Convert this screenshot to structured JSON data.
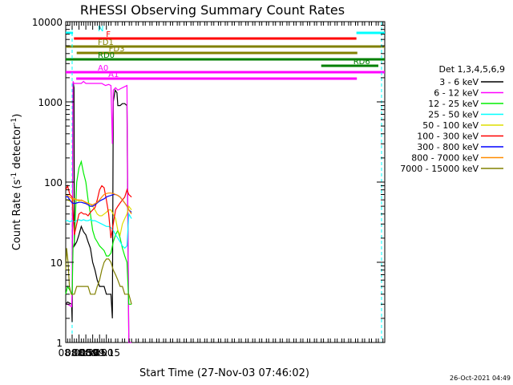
{
  "chart_data": {
    "type": "line",
    "title": "RHESSI Observing Summary Count Rates",
    "xlabel": "Start Time (27-Nov-03 07:46:02)",
    "ylabel_main": "Count Rate (s",
    "ylabel_sup1": "-1",
    "ylabel_mid": " detector",
    "ylabel_sup2": "-1",
    "ylabel_end": ")",
    "y_scale": "log",
    "ylim": [
      1,
      10000
    ],
    "xlim_minutes_of_day": [
      466,
      1164
    ],
    "x_tick_labels": [
      "08:00",
      "08:15",
      "08:30",
      "08:45",
      "09:00",
      "09:15"
    ],
    "y_tick_labels": [
      "1",
      "10",
      "100",
      "1000",
      "10000"
    ],
    "legend_header": "Det 1,3,4,5,6,9",
    "legend": [
      {
        "name": "3 - 6 keV",
        "color": "#000000"
      },
      {
        "name": "6 - 12 keV",
        "color": "#ff00ff"
      },
      {
        "name": "12 - 25 keV",
        "color": "#00ee00"
      },
      {
        "name": "25 - 50 keV",
        "color": "#00ffff"
      },
      {
        "name": "50 - 100 keV",
        "color": "#dddd00"
      },
      {
        "name": "100 - 300 keV",
        "color": "#ff0000"
      },
      {
        "name": "300 - 800 keV",
        "color": "#0000ff"
      },
      {
        "name": "800 - 7000 keV",
        "color": "#ff8c00"
      },
      {
        "name": "7000 - 15000 keV",
        "color": "#808000"
      }
    ],
    "flag_bars": [
      {
        "label": "N",
        "color": "#00ffff",
        "segments": [
          [
            466,
            482
          ],
          [
            1102,
            1164
          ]
        ]
      },
      {
        "label": "F",
        "color": "#ff0000",
        "segments": [
          [
            484,
            1102
          ]
        ]
      },
      {
        "label": "FD1",
        "color": "#808000",
        "segments": [
          [
            466,
            1164
          ]
        ]
      },
      {
        "label": "FD3",
        "color": "#808000",
        "segments": [
          [
            490,
            1104
          ]
        ]
      },
      {
        "label": "RD0",
        "color": "#008000",
        "segments": [
          [
            466,
            1164
          ]
        ]
      },
      {
        "label": "RD6",
        "color": "#008000",
        "segments": [
          [
            1025,
            1150
          ]
        ]
      },
      {
        "label": "A0",
        "color": "#ff00ff",
        "segments": [
          [
            466,
            1164
          ]
        ]
      },
      {
        "label": "A1",
        "color": "#ff00ff",
        "segments": [
          [
            489,
            1103
          ]
        ]
      }
    ],
    "series": [
      {
        "legend": "3 - 6 keV",
        "color": "#000000",
        "points": [
          [
            466,
            3
          ],
          [
            470,
            3.2
          ],
          [
            479,
            3
          ],
          [
            480,
            1.8
          ],
          [
            482,
            1800
          ],
          [
            484,
            1500
          ],
          [
            485,
            16
          ],
          [
            490,
            18
          ],
          [
            495,
            22
          ],
          [
            500,
            28
          ],
          [
            505,
            24
          ],
          [
            510,
            22
          ],
          [
            515,
            18
          ],
          [
            520,
            15
          ],
          [
            525,
            10
          ],
          [
            530,
            8
          ],
          [
            535,
            6
          ],
          [
            540,
            5
          ],
          [
            545,
            5
          ],
          [
            550,
            5
          ],
          [
            555,
            4
          ],
          [
            560,
            4
          ],
          [
            565,
            4
          ],
          [
            568,
            2
          ],
          [
            570,
            1000
          ],
          [
            574,
            1400
          ],
          [
            578,
            1300
          ],
          [
            580,
            900
          ],
          [
            585,
            900
          ],
          [
            590,
            950
          ],
          [
            595,
            950
          ],
          [
            600,
            900
          ],
          [
            604,
            1
          ],
          [
            608,
            1
          ]
        ]
      },
      {
        "legend": "6 - 12 keV",
        "color": "#ff00ff",
        "points": [
          [
            466,
            3
          ],
          [
            470,
            3
          ],
          [
            479,
            2.8
          ],
          [
            480,
            5
          ],
          [
            482,
            1800
          ],
          [
            484,
            1700
          ],
          [
            490,
            1700
          ],
          [
            500,
            1700
          ],
          [
            505,
            1800
          ],
          [
            510,
            1700
          ],
          [
            525,
            1700
          ],
          [
            535,
            1700
          ],
          [
            545,
            1700
          ],
          [
            553,
            1600
          ],
          [
            560,
            1650
          ],
          [
            565,
            1600
          ],
          [
            568,
            300
          ],
          [
            570,
            1400
          ],
          [
            575,
            1500
          ],
          [
            580,
            1400
          ],
          [
            590,
            1500
          ],
          [
            600,
            1600
          ],
          [
            604,
            1
          ],
          [
            610,
            1
          ]
        ]
      },
      {
        "legend": "12 - 25 keV",
        "color": "#00ee00",
        "points": [
          [
            466,
            4
          ],
          [
            470,
            5
          ],
          [
            480,
            4
          ],
          [
            482,
            15
          ],
          [
            485,
            18
          ],
          [
            490,
            100
          ],
          [
            495,
            150
          ],
          [
            500,
            180
          ],
          [
            505,
            130
          ],
          [
            510,
            100
          ],
          [
            515,
            60
          ],
          [
            520,
            40
          ],
          [
            525,
            25
          ],
          [
            530,
            20
          ],
          [
            535,
            18
          ],
          [
            540,
            16
          ],
          [
            545,
            15
          ],
          [
            550,
            14
          ],
          [
            555,
            12
          ],
          [
            560,
            12
          ],
          [
            565,
            13
          ],
          [
            570,
            18
          ],
          [
            575,
            22
          ],
          [
            580,
            25
          ],
          [
            585,
            20
          ],
          [
            590,
            15
          ],
          [
            595,
            12
          ],
          [
            600,
            10
          ],
          [
            604,
            3
          ],
          [
            610,
            3
          ]
        ]
      },
      {
        "legend": "25 - 50 keV",
        "color": "#00ffff",
        "points": [
          [
            466,
            33
          ],
          [
            470,
            33
          ],
          [
            475,
            32
          ],
          [
            480,
            33
          ],
          [
            485,
            32
          ],
          [
            490,
            33
          ],
          [
            495,
            34
          ],
          [
            500,
            33
          ],
          [
            505,
            34
          ],
          [
            510,
            33
          ],
          [
            515,
            33
          ],
          [
            520,
            34
          ],
          [
            525,
            33
          ],
          [
            530,
            33
          ],
          [
            535,
            32
          ],
          [
            540,
            31
          ],
          [
            545,
            30
          ],
          [
            550,
            29
          ],
          [
            555,
            28
          ],
          [
            560,
            28
          ],
          [
            565,
            27
          ],
          [
            570,
            25
          ],
          [
            575,
            22
          ],
          [
            580,
            20
          ],
          [
            585,
            18
          ],
          [
            590,
            16
          ],
          [
            595,
            15
          ],
          [
            600,
            16
          ],
          [
            604,
            40
          ],
          [
            610,
            35
          ]
        ]
      },
      {
        "legend": "50 - 100 keV",
        "color": "#dddd00",
        "points": [
          [
            466,
            60
          ],
          [
            470,
            60
          ],
          [
            475,
            58
          ],
          [
            480,
            57
          ],
          [
            485,
            62
          ],
          [
            490,
            60
          ],
          [
            495,
            58
          ],
          [
            500,
            60
          ],
          [
            505,
            58
          ],
          [
            510,
            55
          ],
          [
            515,
            55
          ],
          [
            520,
            53
          ],
          [
            525,
            50
          ],
          [
            530,
            45
          ],
          [
            535,
            40
          ],
          [
            540,
            38
          ],
          [
            545,
            38
          ],
          [
            550,
            40
          ],
          [
            555,
            42
          ],
          [
            560,
            45
          ],
          [
            565,
            45
          ],
          [
            570,
            40
          ],
          [
            575,
            35
          ],
          [
            580,
            25
          ],
          [
            585,
            22
          ],
          [
            590,
            30
          ],
          [
            595,
            35
          ],
          [
            600,
            40
          ],
          [
            604,
            50
          ],
          [
            610,
            45
          ]
        ]
      },
      {
        "legend": "100 - 300 keV",
        "color": "#ff0000",
        "points": [
          [
            466,
            80
          ],
          [
            470,
            90
          ],
          [
            475,
            70
          ],
          [
            480,
            65
          ],
          [
            485,
            22
          ],
          [
            490,
            30
          ],
          [
            495,
            40
          ],
          [
            500,
            42
          ],
          [
            505,
            40
          ],
          [
            510,
            40
          ],
          [
            515,
            38
          ],
          [
            520,
            42
          ],
          [
            525,
            45
          ],
          [
            530,
            48
          ],
          [
            535,
            60
          ],
          [
            540,
            80
          ],
          [
            545,
            90
          ],
          [
            550,
            85
          ],
          [
            555,
            60
          ],
          [
            560,
            40
          ],
          [
            565,
            20
          ],
          [
            570,
            30
          ],
          [
            575,
            45
          ],
          [
            580,
            50
          ],
          [
            585,
            55
          ],
          [
            590,
            60
          ],
          [
            595,
            65
          ],
          [
            600,
            80
          ],
          [
            604,
            70
          ],
          [
            610,
            65
          ]
        ]
      },
      {
        "legend": "300 - 800 keV",
        "color": "#0000ff",
        "points": [
          [
            466,
            65
          ],
          [
            470,
            66
          ],
          [
            475,
            60
          ],
          [
            480,
            55
          ],
          [
            485,
            54
          ],
          [
            490,
            55
          ],
          [
            495,
            56
          ],
          [
            500,
            56
          ],
          [
            505,
            55
          ],
          [
            510,
            54
          ],
          [
            515,
            52
          ],
          [
            520,
            50
          ],
          [
            525,
            50
          ],
          [
            530,
            52
          ],
          [
            535,
            55
          ],
          [
            540,
            58
          ],
          [
            545,
            60
          ],
          [
            550,
            62
          ],
          [
            555,
            65
          ],
          [
            560,
            67
          ],
          [
            565,
            68
          ],
          [
            570,
            70
          ],
          [
            575,
            70
          ],
          [
            580,
            68
          ],
          [
            585,
            65
          ],
          [
            590,
            60
          ],
          [
            595,
            55
          ],
          [
            600,
            50
          ],
          [
            604,
            45
          ],
          [
            610,
            42
          ]
        ]
      },
      {
        "legend": "800 - 7000 keV",
        "color": "#ff8c00",
        "points": [
          [
            466,
            70
          ],
          [
            470,
            68
          ],
          [
            475,
            65
          ],
          [
            480,
            62
          ],
          [
            485,
            62
          ],
          [
            490,
            60
          ],
          [
            495,
            60
          ],
          [
            500,
            59
          ],
          [
            505,
            58
          ],
          [
            510,
            56
          ],
          [
            515,
            54
          ],
          [
            520,
            53
          ],
          [
            525,
            52
          ],
          [
            530,
            54
          ],
          [
            535,
            56
          ],
          [
            540,
            60
          ],
          [
            545,
            65
          ],
          [
            550,
            70
          ],
          [
            555,
            72
          ],
          [
            560,
            73
          ],
          [
            565,
            73
          ],
          [
            570,
            72
          ],
          [
            575,
            70
          ],
          [
            580,
            68
          ],
          [
            585,
            65
          ],
          [
            590,
            60
          ],
          [
            595,
            55
          ],
          [
            600,
            50
          ],
          [
            604,
            45
          ],
          [
            610,
            40
          ]
        ]
      },
      {
        "legend": "7000 - 15000 keV",
        "color": "#808000",
        "points": [
          [
            466,
            8
          ],
          [
            468,
            15
          ],
          [
            471,
            10
          ],
          [
            474,
            5
          ],
          [
            478,
            4
          ],
          [
            480,
            4
          ],
          [
            485,
            4
          ],
          [
            490,
            5
          ],
          [
            495,
            5
          ],
          [
            500,
            5
          ],
          [
            505,
            5
          ],
          [
            510,
            5
          ],
          [
            515,
            5
          ],
          [
            520,
            4
          ],
          [
            525,
            4
          ],
          [
            530,
            4
          ],
          [
            535,
            5
          ],
          [
            540,
            6
          ],
          [
            545,
            8
          ],
          [
            550,
            10
          ],
          [
            555,
            11
          ],
          [
            560,
            11
          ],
          [
            565,
            10
          ],
          [
            570,
            8
          ],
          [
            575,
            7
          ],
          [
            580,
            6
          ],
          [
            585,
            5
          ],
          [
            590,
            5
          ],
          [
            595,
            4
          ],
          [
            600,
            4
          ],
          [
            604,
            4
          ],
          [
            610,
            3
          ]
        ]
      }
    ]
  },
  "footer": {
    "timestamp": "26-Oct-2021 04:49"
  }
}
